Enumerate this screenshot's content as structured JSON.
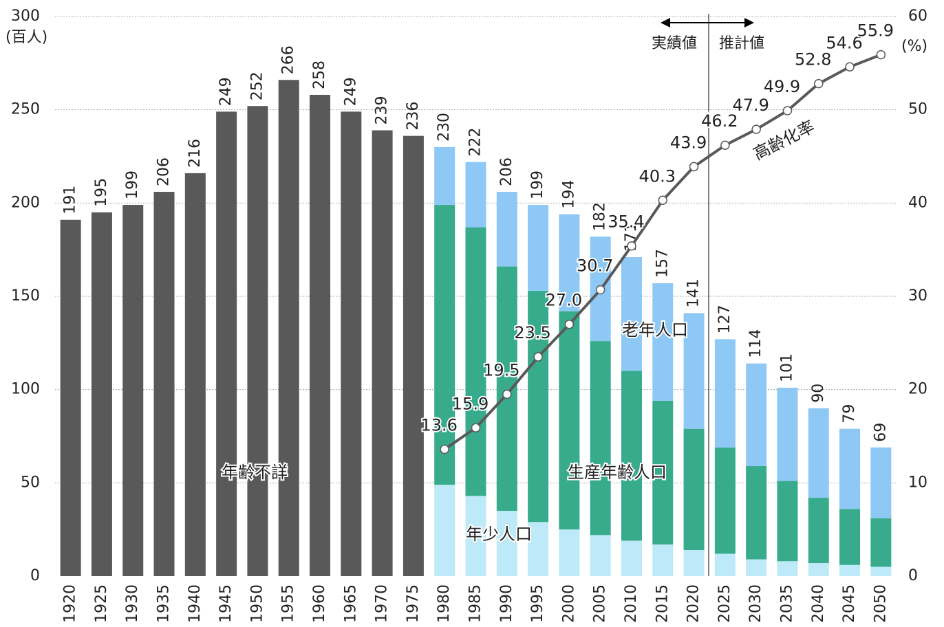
{
  "chart_data": {
    "type": "bar",
    "categories": [
      "1920",
      "1925",
      "1930",
      "1935",
      "1940",
      "1945",
      "1950",
      "1955",
      "1960",
      "1965",
      "1970",
      "1975",
      "1980",
      "1985",
      "1990",
      "1995",
      "2000",
      "2005",
      "2010",
      "2015",
      "2020",
      "2025",
      "2030",
      "2035",
      "2040",
      "2045",
      "2050"
    ],
    "totals": [
      191,
      195,
      199,
      206,
      216,
      249,
      252,
      266,
      258,
      249,
      239,
      236,
      230,
      222,
      206,
      199,
      194,
      182,
      171,
      157,
      141,
      127,
      114,
      101,
      90,
      79,
      69
    ],
    "series": [
      {
        "name": "年齢不詳",
        "color": "#595959",
        "values": [
          191,
          195,
          199,
          206,
          216,
          249,
          252,
          266,
          258,
          249,
          239,
          236,
          null,
          null,
          null,
          null,
          null,
          null,
          null,
          null,
          null,
          null,
          null,
          null,
          null,
          null,
          null
        ]
      },
      {
        "name": "年少人口",
        "color": "#bde9f8",
        "values": [
          null,
          null,
          null,
          null,
          null,
          null,
          null,
          null,
          null,
          null,
          null,
          null,
          49,
          43,
          35,
          29,
          25,
          22,
          19,
          17,
          14,
          12,
          9,
          8,
          7,
          6,
          5
        ]
      },
      {
        "name": "生産年齢人口",
        "color": "#38ab8c",
        "values": [
          null,
          null,
          null,
          null,
          null,
          null,
          null,
          null,
          null,
          null,
          null,
          null,
          150,
          144,
          131,
          124,
          117,
          104,
          91,
          77,
          65,
          57,
          50,
          43,
          35,
          30,
          26
        ]
      },
      {
        "name": "老年人口",
        "color": "#8ec8f5",
        "values": [
          null,
          null,
          null,
          null,
          null,
          null,
          null,
          null,
          null,
          null,
          null,
          null,
          31,
          35,
          40,
          46,
          52,
          56,
          61,
          63,
          62,
          58,
          55,
          50,
          48,
          43,
          38
        ]
      },
      {
        "name": "高齢化率",
        "type": "line",
        "axis": "y2",
        "color": "#595959",
        "values": [
          null,
          null,
          null,
          null,
          null,
          null,
          null,
          null,
          null,
          null,
          null,
          null,
          13.6,
          15.9,
          19.5,
          23.5,
          27.0,
          30.7,
          35.4,
          40.3,
          43.9,
          46.2,
          47.9,
          49.9,
          52.8,
          54.6,
          55.9
        ],
        "value_labels": [
          null,
          null,
          null,
          null,
          null,
          null,
          null,
          null,
          null,
          null,
          null,
          null,
          "13.6",
          "15.9",
          "19.5",
          "23.5",
          "27.0",
          "30.7",
          "35.4",
          "40.3",
          "43.9",
          "46.2",
          "47.9",
          "49.9",
          "52.8",
          "54.6",
          "55.9"
        ]
      }
    ],
    "ylim": [
      0,
      300
    ],
    "yticks": [
      0,
      50,
      100,
      150,
      200,
      250,
      300
    ],
    "y2lim": [
      0,
      60
    ],
    "y2ticks": [
      0,
      10,
      20,
      30,
      40,
      50,
      60
    ],
    "ylabel": "(百人)",
    "y2label": "(%)",
    "grid": true,
    "annotations": [
      "実績値",
      "推計値"
    ]
  }
}
